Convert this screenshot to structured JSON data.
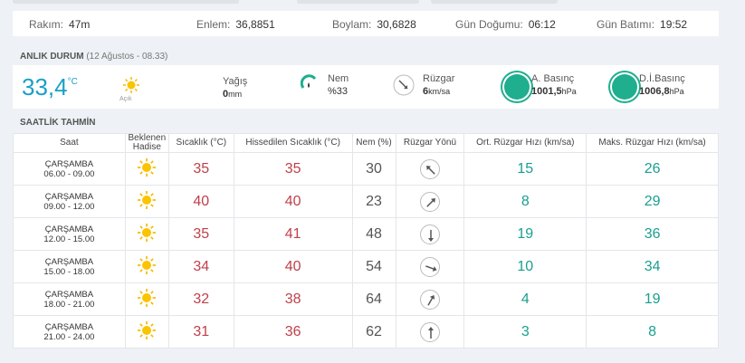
{
  "info_bar": {
    "altitude_label": "Rakım:",
    "altitude_value": "47m",
    "lat_label": "Enlem:",
    "lat_value": "36,8851",
    "lon_label": "Boylam:",
    "lon_value": "30,6828",
    "sunrise_label": "Gün Doğumu:",
    "sunrise_value": "06:12",
    "sunset_label": "Gün Batımı:",
    "sunset_value": "19:52"
  },
  "current": {
    "title": "ANLIK DURUM",
    "subtitle": "(12 Ağustos - 08.33)",
    "temperature": "33,4",
    "temp_unit": "°C",
    "condition": "Açık",
    "condition_icon": "sun-icon",
    "rain_label": "Yağış",
    "rain_value": "0",
    "rain_unit": "mm",
    "humidity_label": "Nem",
    "humidity_value": "%33",
    "wind_label": "Rüzgar",
    "wind_value": "6",
    "wind_unit": "km/sa",
    "pressure_label": "A. Basınç",
    "pressure_value": "1001,5",
    "pressure_unit": "hPa",
    "sea_pressure_label": "D.İ.Basınç",
    "sea_pressure_value": "1006,8",
    "sea_pressure_unit": "hPa",
    "accent": "#1fae8e"
  },
  "hourly": {
    "title": "SAATLİK TAHMİN",
    "headers": [
      "Saat",
      "Beklenen Hadise",
      "Sıcaklık (°C)",
      "Hissedilen Sıcaklık (°C)",
      "Nem (%)",
      "Rüzgar Yönü",
      "Ort. Rüzgar Hızı (km/sa)",
      "Maks. Rüzgar Hızı (km/sa)"
    ],
    "rows": [
      {
        "day": "ÇARŞAMBA",
        "time": "06.00 - 09.00",
        "icon": "sun-icon",
        "temp": "35",
        "feels": "35",
        "humidity": "30",
        "wind_dir_deg": 135,
        "avg": "15",
        "max": "26"
      },
      {
        "day": "ÇARŞAMBA",
        "time": "09.00 - 12.00",
        "icon": "sun-icon",
        "temp": "40",
        "feels": "40",
        "humidity": "23",
        "wind_dir_deg": 225,
        "avg": "8",
        "max": "29"
      },
      {
        "day": "ÇARŞAMBA",
        "time": "12.00 - 15.00",
        "icon": "sun-icon",
        "temp": "35",
        "feels": "41",
        "humidity": "48",
        "wind_dir_deg": 0,
        "avg": "19",
        "max": "36"
      },
      {
        "day": "ÇARŞAMBA",
        "time": "15.00 - 18.00",
        "icon": "sun-icon",
        "temp": "34",
        "feels": "40",
        "humidity": "54",
        "wind_dir_deg": 290,
        "avg": "10",
        "max": "34"
      },
      {
        "day": "ÇARŞAMBA",
        "time": "18.00 - 21.00",
        "icon": "sun-icon",
        "temp": "32",
        "feels": "38",
        "humidity": "64",
        "wind_dir_deg": 210,
        "avg": "4",
        "max": "19"
      },
      {
        "day": "ÇARŞAMBA",
        "time": "21.00 - 24.00",
        "icon": "sun-icon",
        "temp": "31",
        "feels": "36",
        "humidity": "62",
        "wind_dir_deg": 180,
        "avg": "3",
        "max": "8"
      }
    ]
  },
  "colors": {
    "temp_red": "#c0404a",
    "wind_green": "#1a9f8f",
    "temp_blue": "#1a9fc7"
  }
}
